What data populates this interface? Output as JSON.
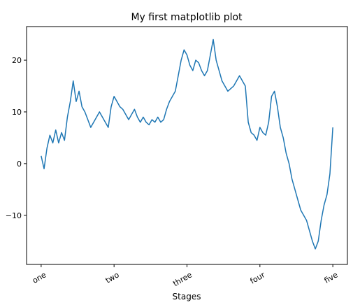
{
  "chart_data": {
    "type": "line",
    "title": "My first matplotlib plot",
    "xlabel": "Stages",
    "ylabel": "",
    "xlim": [
      -50,
      1050
    ],
    "ylim": [
      -19.5,
      26.5
    ],
    "grid": false,
    "x_ticks": [
      {
        "value": 0,
        "label": "one"
      },
      {
        "value": 250,
        "label": "two"
      },
      {
        "value": 500,
        "label": "three"
      },
      {
        "value": 750,
        "label": "four"
      },
      {
        "value": 1000,
        "label": "five"
      }
    ],
    "y_ticks": [
      {
        "value": -10,
        "label": "−10"
      },
      {
        "value": 0,
        "label": "0"
      },
      {
        "value": 10,
        "label": "10"
      },
      {
        "value": 20,
        "label": "20"
      }
    ],
    "series": [
      {
        "color": "#1f77b4",
        "x": [
          0,
          10,
          20,
          30,
          40,
          50,
          60,
          70,
          80,
          90,
          100,
          110,
          120,
          130,
          140,
          150,
          160,
          170,
          180,
          190,
          200,
          210,
          220,
          230,
          240,
          250,
          260,
          270,
          280,
          290,
          300,
          310,
          320,
          330,
          340,
          350,
          360,
          370,
          380,
          390,
          400,
          410,
          420,
          430,
          440,
          450,
          460,
          470,
          480,
          490,
          500,
          510,
          520,
          530,
          540,
          550,
          560,
          570,
          580,
          590,
          600,
          610,
          620,
          630,
          640,
          650,
          660,
          670,
          680,
          690,
          700,
          710,
          720,
          730,
          740,
          750,
          760,
          770,
          780,
          790,
          800,
          810,
          820,
          830,
          840,
          850,
          860,
          870,
          880,
          890,
          900,
          910,
          920,
          930,
          940,
          950,
          960,
          970,
          980,
          990,
          1000
        ],
        "y": [
          1.5,
          -1.0,
          3.0,
          5.5,
          4.0,
          6.5,
          4.0,
          6.0,
          4.5,
          9.0,
          12.0,
          16.0,
          12.0,
          14.0,
          11.0,
          10.0,
          8.5,
          7.0,
          8.0,
          9.0,
          10.0,
          9.0,
          8.0,
          7.0,
          11.0,
          13.0,
          12.0,
          11.0,
          10.5,
          9.5,
          8.5,
          9.5,
          10.5,
          9.0,
          8.0,
          9.0,
          8.0,
          7.5,
          8.5,
          8.0,
          9.0,
          8.0,
          8.5,
          10.5,
          12.0,
          13.0,
          14.0,
          17.0,
          20.0,
          22.0,
          21.0,
          19.0,
          18.0,
          20.0,
          19.5,
          18.0,
          17.0,
          18.0,
          21.0,
          24.0,
          20.0,
          18.0,
          16.0,
          15.0,
          14.0,
          14.5,
          15.0,
          16.0,
          17.0,
          16.0,
          15.0,
          8.0,
          6.0,
          5.5,
          4.5,
          7.0,
          6.0,
          5.5,
          8.0,
          13.0,
          14.0,
          11.0,
          7.0,
          5.0,
          2.0,
          0.0,
          -3.0,
          -5.0,
          -7.0,
          -9.0,
          -10.0,
          -11.0,
          -13.0,
          -15.0,
          -16.5,
          -15.0,
          -11.0,
          -8.0,
          -6.0,
          -2.0,
          7.0
        ]
      }
    ]
  }
}
